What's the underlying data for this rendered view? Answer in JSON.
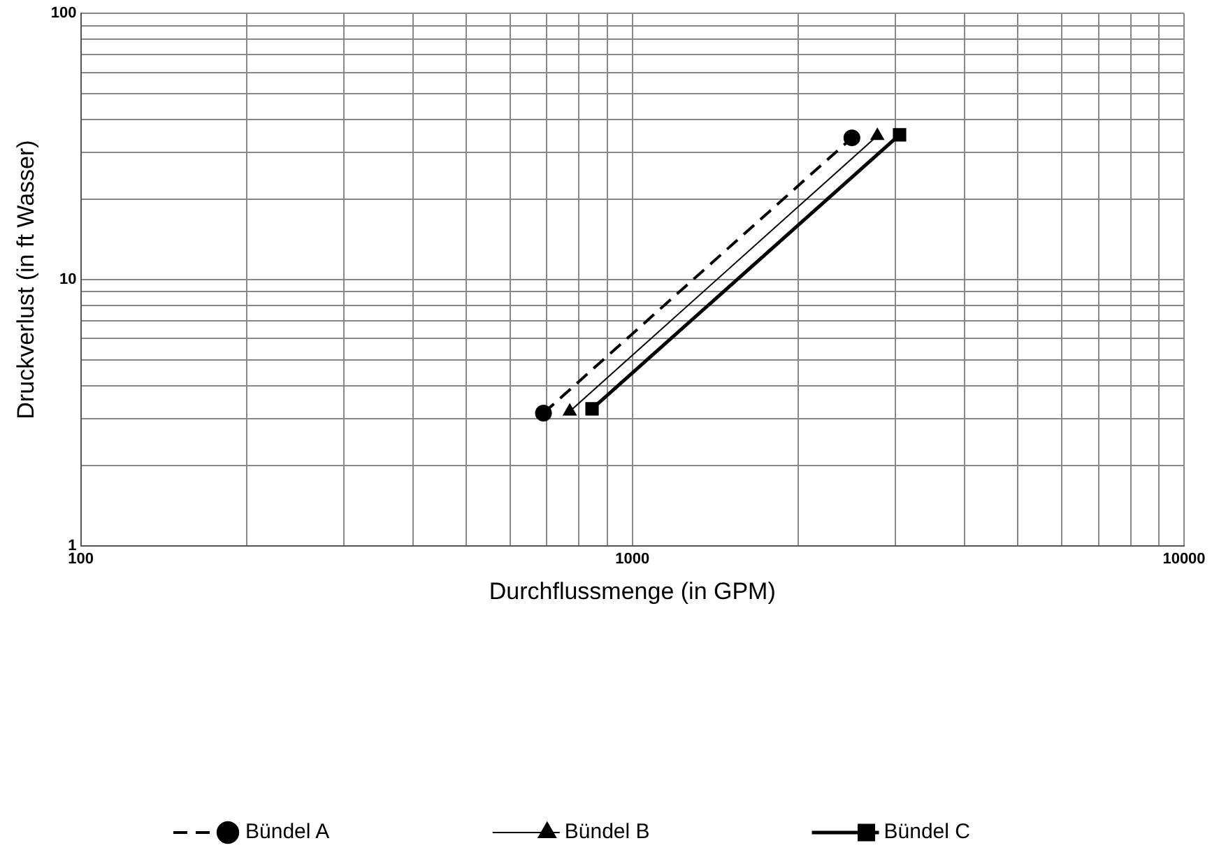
{
  "chart_data": {
    "type": "line",
    "xlabel": "Durchflussmenge (in GPM)",
    "ylabel": "Druckverlust (in ft Wasser)",
    "log": "xy",
    "grid": true,
    "legend": "bottom",
    "xlim": [
      100,
      10000
    ],
    "ylim": [
      1,
      100
    ],
    "xticks": [
      100,
      {
        "value": 200,
        "label": null
      },
      {
        "value": 300,
        "label": null
      },
      {
        "value": 400,
        "label": null
      },
      {
        "value": 500,
        "label": null
      },
      {
        "value": 600,
        "label": null
      },
      {
        "value": 700,
        "label": null
      },
      {
        "value": 800,
        "label": null
      },
      {
        "value": 900,
        "label": null
      },
      1000,
      {
        "value": 2000,
        "label": null
      },
      {
        "value": 3000,
        "label": null
      },
      {
        "value": 4000,
        "label": null
      },
      {
        "value": 5000,
        "label": null
      },
      {
        "value": 6000,
        "label": null
      },
      {
        "value": 7000,
        "label": null
      },
      {
        "value": 8000,
        "label": null
      },
      {
        "value": 9000,
        "label": null
      },
      10000
    ],
    "yticks": [
      1,
      {
        "value": 2,
        "label": null
      },
      {
        "value": 3,
        "label": null
      },
      {
        "value": 4,
        "label": null
      },
      {
        "value": 5,
        "label": null
      },
      {
        "value": 6,
        "label": null
      },
      {
        "value": 7,
        "label": null
      },
      {
        "value": 8,
        "label": null
      },
      {
        "value": 9,
        "label": null
      },
      10,
      {
        "value": 20,
        "label": null
      },
      {
        "value": 30,
        "label": null
      },
      {
        "value": 40,
        "label": null
      },
      {
        "value": 50,
        "label": null
      },
      {
        "value": 60,
        "label": null
      },
      {
        "value": 70,
        "label": null
      },
      {
        "value": 80,
        "label": null
      },
      {
        "value": 90,
        "label": null
      },
      100
    ],
    "series": [
      {
        "name": "Bündel A",
        "color": "#000000",
        "marker": "circle",
        "line_style": "dashed",
        "x": [
          690,
          2500
        ],
        "values": [
          3.15,
          34.1
        ]
      },
      {
        "name": "Bündel B",
        "color": "#000000",
        "marker": "triangle",
        "line_style": "solid",
        "x": [
          770,
          2780
        ],
        "values": [
          3.2,
          34.7
        ]
      },
      {
        "name": "Bündel C",
        "color": "#000000",
        "marker": "square",
        "line_style": "solid",
        "x": [
          845,
          3050
        ],
        "values": [
          3.27,
          35
        ]
      }
    ]
  }
}
